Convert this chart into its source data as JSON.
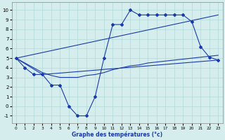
{
  "xlabel": "Graphe des températures (°c)",
  "background_color": "#d5eeed",
  "grid_color": "#b0d8d8",
  "line_color": "#1a3aaa",
  "xlim": [
    -0.5,
    23.5
  ],
  "ylim": [
    -1.8,
    10.8
  ],
  "xticks": [
    0,
    1,
    2,
    3,
    4,
    5,
    6,
    7,
    8,
    9,
    10,
    11,
    12,
    13,
    14,
    15,
    16,
    17,
    18,
    19,
    20,
    21,
    22,
    23
  ],
  "yticks": [
    -1,
    0,
    1,
    2,
    3,
    4,
    5,
    6,
    7,
    8,
    9,
    10
  ],
  "line1_x": [
    0,
    1,
    2,
    3,
    4,
    5,
    6,
    7,
    8,
    9,
    10,
    11,
    12,
    13,
    14,
    15,
    16,
    17,
    18,
    19,
    20,
    21,
    22,
    23
  ],
  "line1_y": [
    5,
    4,
    3.3,
    3.3,
    2.2,
    2.2,
    0,
    -1,
    -1,
    1,
    5,
    8.5,
    8.5,
    10,
    9.5,
    9.5,
    9.5,
    9.5,
    9.5,
    9.5,
    8.8,
    6.2,
    5.1,
    4.8
  ],
  "line2_x": [
    0,
    3,
    23
  ],
  "line2_y": [
    5,
    3.3,
    4.8
  ],
  "line3_x": [
    0,
    23
  ],
  "line3_y": [
    5,
    9.5
  ],
  "line4_x": [
    0,
    1,
    2,
    3,
    4,
    5,
    6,
    7,
    8,
    9,
    10,
    11,
    12,
    13,
    14,
    15,
    16,
    17,
    18,
    19,
    20,
    21,
    22,
    23
  ],
  "line4_y": [
    5,
    4.5,
    4.0,
    3.5,
    3.2,
    3.0,
    3.0,
    3.0,
    3.2,
    3.3,
    3.5,
    3.8,
    4.0,
    4.2,
    4.3,
    4.5,
    4.6,
    4.7,
    4.8,
    4.9,
    5.0,
    5.1,
    5.2,
    5.3
  ]
}
